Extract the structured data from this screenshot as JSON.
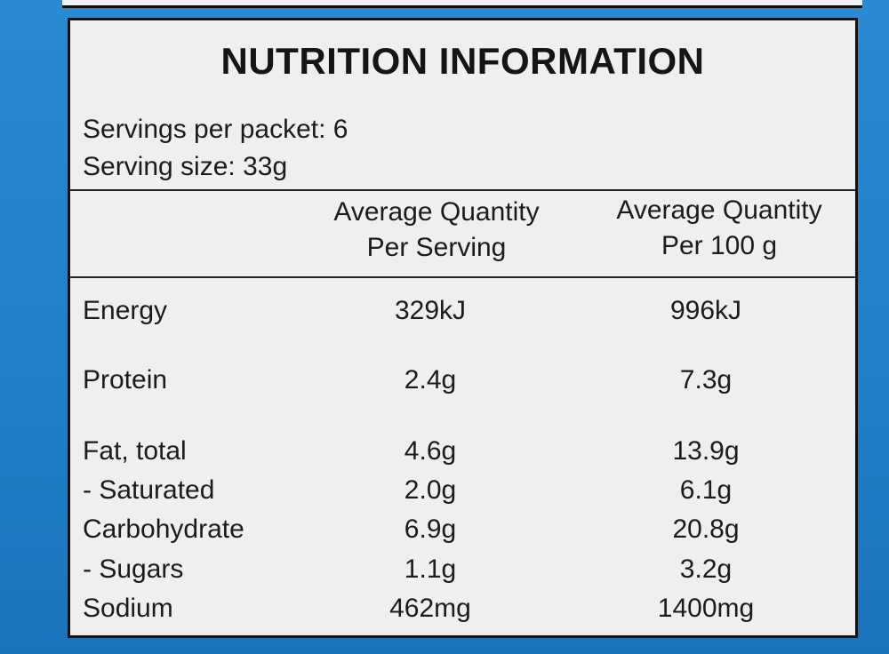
{
  "title": "NUTRITION INFORMATION",
  "servings_per_packet": "Servings per packet: 6",
  "serving_size": "Serving size: 33g",
  "columns": {
    "per_serving": [
      "Average Quantity",
      "Per Serving"
    ],
    "per_100g": [
      "Average Quantity",
      "Per 100 g"
    ]
  },
  "rows": [
    {
      "label": "Energy",
      "per_serving": "329kJ",
      "per_100g": "996kJ"
    },
    {
      "label": "Protein",
      "per_serving": "2.4g",
      "per_100g": "7.3g"
    },
    {
      "label": "Fat, total",
      "per_serving": "4.6g",
      "per_100g": "13.9g"
    },
    {
      "label": "- Saturated",
      "per_serving": "2.0g",
      "per_100g": "6.1g"
    },
    {
      "label": "Carbohydrate",
      "per_serving": "6.9g",
      "per_100g": "20.8g"
    },
    {
      "label": "- Sugars",
      "per_serving": "1.1g",
      "per_100g": "3.2g"
    },
    {
      "label": "Sodium",
      "per_serving": "462mg",
      "per_100g": "1400mg"
    }
  ],
  "colors": {
    "background": "#1f7fc9",
    "panel": "#efeff1",
    "ink": "#151515"
  }
}
